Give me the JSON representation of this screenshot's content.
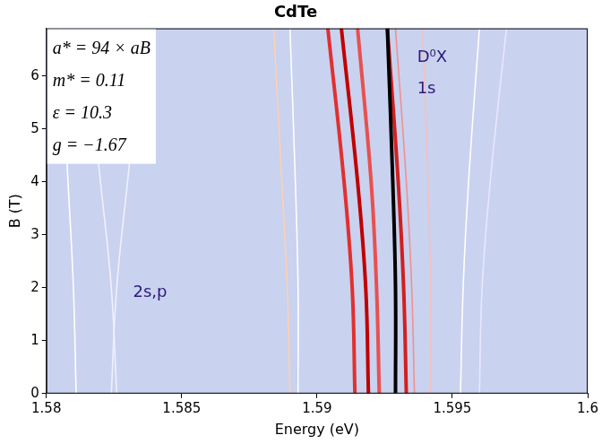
{
  "chart_data": {
    "type": "line",
    "title": "CdTe",
    "x_label": "Energy (eV)",
    "y_label": "B (T)",
    "xlim": [
      1.58,
      1.6
    ],
    "xticks": [
      1.58,
      1.585,
      1.59,
      1.595,
      1.6
    ],
    "ylim": [
      0,
      6.9
    ],
    "yticks": [
      0,
      1,
      2,
      3,
      4,
      5,
      6
    ],
    "grid": false,
    "y": [
      0,
      2,
      4,
      6.9
    ],
    "series": [
      {
        "color": "#e03030",
        "values": [
          1.5914,
          1.5913,
          1.591,
          1.5904
        ]
      },
      {
        "color": "#c00000",
        "values": [
          1.5919,
          1.5918,
          1.5915,
          1.5909
        ]
      },
      {
        "color": "#e85050",
        "values": [
          1.5923,
          1.5922,
          1.592,
          1.5915
        ]
      },
      {
        "color": "#000000",
        "values": [
          1.5929,
          1.5929,
          1.5928,
          1.5926
        ]
      },
      {
        "color": "#d02020",
        "values": [
          1.5933,
          1.5932,
          1.593,
          1.5926
        ]
      },
      {
        "color": "#f09090",
        "values": [
          1.5936,
          1.5935,
          1.5933,
          1.5929
        ]
      },
      {
        "color": "#ffd0b0",
        "values": [
          1.589,
          1.5889,
          1.5887,
          1.5884
        ]
      },
      {
        "color": "#ffffff",
        "values": [
          1.5893,
          1.5893,
          1.5892,
          1.589
        ]
      },
      {
        "color": "#f4c0c0",
        "values": [
          1.5942,
          1.5942,
          1.5941,
          1.5939
        ]
      },
      {
        "color": "#ffffff",
        "values": [
          1.5953,
          1.5954,
          1.5956,
          1.596
        ]
      },
      {
        "color": "#e8e8ff",
        "values": [
          1.596,
          1.5961,
          1.5964,
          1.597
        ]
      },
      {
        "color": "#ffffff",
        "values": [
          1.5811,
          1.581,
          1.5808,
          1.5805
        ]
      },
      {
        "color": "#f0f0ff",
        "values": [
          1.5824,
          1.5826,
          1.583,
          1.5836
        ]
      },
      {
        "color": "#f0f0ff",
        "values": [
          1.5826,
          1.5824,
          1.582,
          1.5814
        ]
      }
    ],
    "annotations": [
      {
        "text": "D⁰X",
        "x": 1.5937,
        "y": 6.35
      },
      {
        "text": "1s",
        "x": 1.5937,
        "y": 5.75
      },
      {
        "text": "2s,p",
        "x": 1.5832,
        "y": 1.9
      }
    ],
    "parameters": [
      "a* = 94 × aB",
      "m* = 0.11",
      "ε = 10.3",
      "g = −1.67"
    ]
  }
}
